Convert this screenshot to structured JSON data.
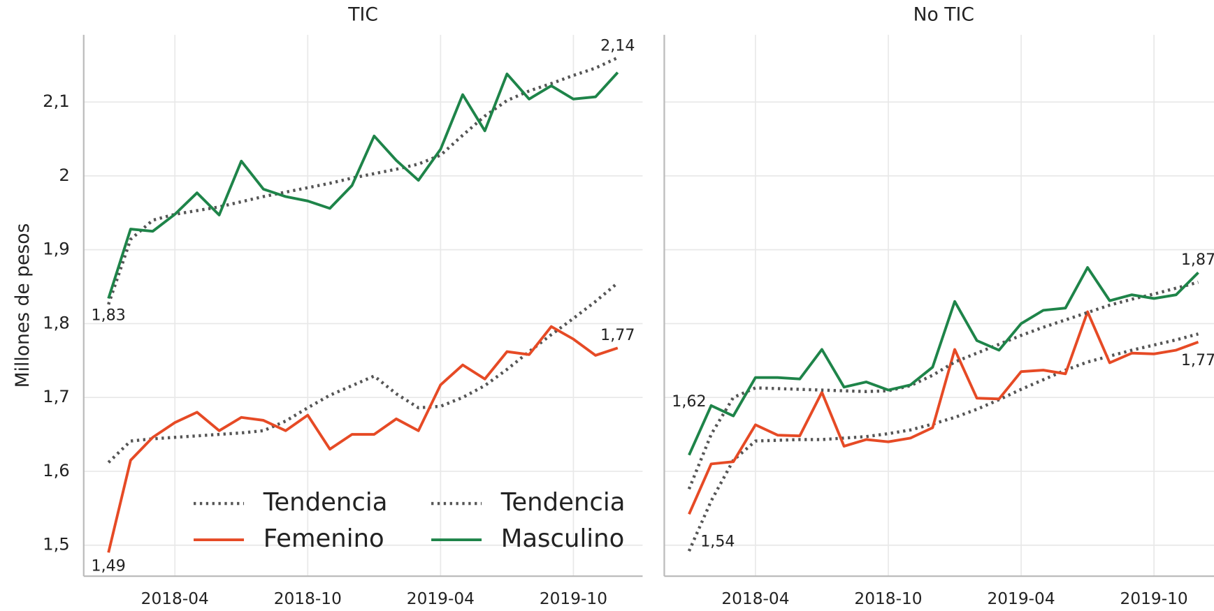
{
  "chart_data": [
    {
      "type": "line",
      "title": "TIC",
      "ylabel": "Millones de pesos",
      "x": [
        "2018-01",
        "2018-02",
        "2018-03",
        "2018-04",
        "2018-05",
        "2018-06",
        "2018-07",
        "2018-08",
        "2018-09",
        "2018-10",
        "2018-11",
        "2018-12",
        "2019-01",
        "2019-02",
        "2019-03",
        "2019-04",
        "2019-05",
        "2019-06",
        "2019-07",
        "2019-08",
        "2019-09",
        "2019-10",
        "2019-11",
        "2019-12"
      ],
      "xticks": [
        "2018-04",
        "2018-10",
        "2019-04",
        "2019-10"
      ],
      "ylim": [
        1.458,
        2.191
      ],
      "yticks": [
        {
          "value": 1.5,
          "label": "1,5"
        },
        {
          "value": 1.6,
          "label": "1,6"
        },
        {
          "value": 1.7,
          "label": "1,7"
        },
        {
          "value": 1.8,
          "label": "1,8"
        },
        {
          "value": 1.9,
          "label": "1,9"
        },
        2,
        {
          "value": 2.1,
          "label": "2,1"
        }
      ],
      "grid": true,
      "legend": "lower right",
      "series": [
        {
          "name": "Tendencia",
          "color": "#555555",
          "linestyle": "dotted",
          "values": [
            1.612,
            1.641,
            1.644,
            1.646,
            1.648,
            1.65,
            1.652,
            1.655,
            1.668,
            1.686,
            1.703,
            1.716,
            1.729,
            1.705,
            1.686,
            1.688,
            1.7,
            1.716,
            1.738,
            1.762,
            1.785,
            1.807,
            1.83,
            1.855
          ]
        },
        {
          "name": "Femenino",
          "color": "#e64a25",
          "linestyle": "solid",
          "values": [
            1.49,
            1.615,
            1.646,
            1.666,
            1.68,
            1.655,
            1.673,
            1.669,
            1.655,
            1.676,
            1.63,
            1.65,
            1.65,
            1.671,
            1.655,
            1.717,
            1.744,
            1.725,
            1.762,
            1.758,
            1.796,
            1.779,
            1.757,
            1.767
          ],
          "value_labels": [
            "1,49",
            null,
            null,
            null,
            null,
            null,
            null,
            null,
            null,
            null,
            null,
            null,
            null,
            null,
            null,
            null,
            null,
            null,
            null,
            null,
            null,
            null,
            null,
            "1,77"
          ]
        },
        {
          "name": "Tendencia",
          "color": "#555555",
          "linestyle": "dotted",
          "values": [
            1.826,
            1.914,
            1.94,
            1.948,
            1.953,
            1.958,
            1.965,
            1.972,
            1.978,
            1.984,
            1.99,
            1.997,
            2.003,
            2.009,
            2.016,
            2.028,
            2.055,
            2.081,
            2.102,
            2.115,
            2.125,
            2.136,
            2.146,
            2.16
          ]
        },
        {
          "name": "Masculino",
          "color": "#1e8449",
          "linestyle": "solid",
          "values": [
            1.834,
            1.928,
            1.925,
            1.948,
            1.977,
            1.947,
            2.02,
            1.982,
            1.972,
            1.966,
            1.956,
            1.987,
            2.054,
            2.021,
            1.994,
            2.036,
            2.11,
            2.061,
            2.138,
            2.104,
            2.122,
            2.104,
            2.107,
            2.14
          ],
          "value_labels": [
            "1,83",
            null,
            null,
            null,
            null,
            null,
            null,
            null,
            null,
            null,
            null,
            null,
            null,
            null,
            null,
            null,
            null,
            null,
            null,
            null,
            null,
            null,
            null,
            "2,14"
          ]
        }
      ]
    },
    {
      "type": "line",
      "title": "No TIC",
      "sharey": true,
      "x": [
        "2018-01",
        "2018-02",
        "2018-03",
        "2018-04",
        "2018-05",
        "2018-06",
        "2018-07",
        "2018-08",
        "2018-09",
        "2018-10",
        "2018-11",
        "2018-12",
        "2019-01",
        "2019-02",
        "2019-03",
        "2019-04",
        "2019-05",
        "2019-06",
        "2019-07",
        "2019-08",
        "2019-09",
        "2019-10",
        "2019-11",
        "2019-12"
      ],
      "xticks": [
        "2018-04",
        "2018-10",
        "2019-04",
        "2019-10"
      ],
      "grid": true,
      "series": [
        {
          "color": "#555555",
          "linestyle": "dotted",
          "values": [
            1.492,
            1.56,
            1.615,
            1.641,
            1.642,
            1.643,
            1.643,
            1.645,
            1.647,
            1.651,
            1.656,
            1.664,
            1.673,
            1.684,
            1.697,
            1.711,
            1.724,
            1.737,
            1.748,
            1.756,
            1.764,
            1.771,
            1.778,
            1.786
          ]
        },
        {
          "color": "#e64a25",
          "linestyle": "solid",
          "values": [
            1.542,
            1.61,
            1.613,
            1.663,
            1.649,
            1.648,
            1.707,
            1.634,
            1.643,
            1.64,
            1.645,
            1.659,
            1.765,
            1.699,
            1.698,
            1.735,
            1.737,
            1.732,
            1.816,
            1.747,
            1.76,
            1.759,
            1.764,
            1.775
          ],
          "value_labels": [
            "1,54",
            null,
            null,
            null,
            null,
            null,
            null,
            null,
            null,
            null,
            null,
            null,
            null,
            null,
            null,
            null,
            null,
            null,
            null,
            null,
            null,
            null,
            null,
            "1,77"
          ]
        },
        {
          "color": "#555555",
          "linestyle": "dotted",
          "values": [
            1.576,
            1.65,
            1.7,
            1.713,
            1.712,
            1.711,
            1.71,
            1.709,
            1.708,
            1.709,
            1.716,
            1.73,
            1.748,
            1.76,
            1.772,
            1.784,
            1.795,
            1.805,
            1.815,
            1.825,
            1.833,
            1.84,
            1.848,
            1.856
          ]
        },
        {
          "color": "#1e8449",
          "linestyle": "solid",
          "values": [
            1.622,
            1.689,
            1.675,
            1.727,
            1.727,
            1.725,
            1.765,
            1.714,
            1.721,
            1.71,
            1.717,
            1.741,
            1.83,
            1.777,
            1.764,
            1.8,
            1.818,
            1.821,
            1.876,
            1.831,
            1.839,
            1.834,
            1.839,
            1.869
          ],
          "value_labels": [
            "1,62",
            null,
            null,
            null,
            null,
            null,
            null,
            null,
            null,
            null,
            null,
            null,
            null,
            null,
            null,
            null,
            null,
            null,
            null,
            null,
            null,
            null,
            null,
            "1,87"
          ]
        }
      ]
    }
  ]
}
